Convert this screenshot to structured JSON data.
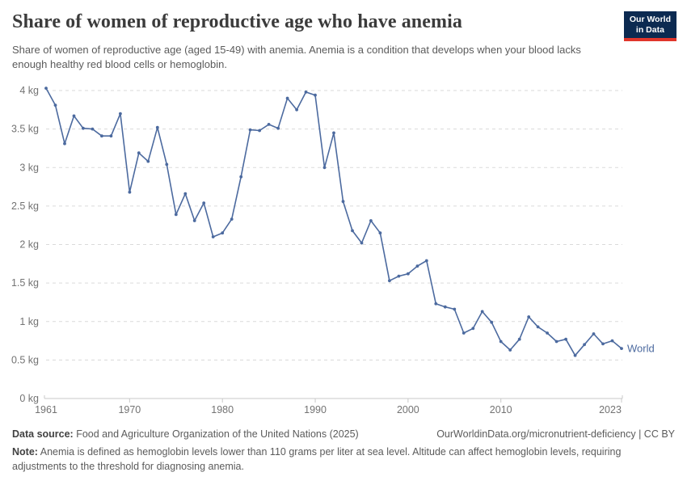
{
  "header": {
    "title": "Share of women of reproductive age who have anemia",
    "subtitle": "Share of women of reproductive age (aged 15-49) with anemia. Anemia is a condition that develops when your blood lacks enough healthy red blood cells or hemoglobin.",
    "logo": {
      "line1": "Our World",
      "line2": "in Data",
      "bg_color": "#0c2a51",
      "stripe_color": "#e0352b"
    }
  },
  "chart_data": {
    "type": "line",
    "title": "Share of women of reproductive age who have anemia",
    "xlabel": "",
    "ylabel": "",
    "xlim": [
      1961,
      2023
    ],
    "ylim": [
      0,
      4
    ],
    "grid": "dashed horizontal",
    "legend_position": "end-of-line label",
    "x_ticks": [
      1961,
      1970,
      1980,
      1990,
      2000,
      2010,
      2023
    ],
    "y_ticks": [
      {
        "value": 0,
        "label": "0 kg"
      },
      {
        "value": 0.5,
        "label": "0.5 kg"
      },
      {
        "value": 1,
        "label": "1 kg"
      },
      {
        "value": 1.5,
        "label": "1.5 kg"
      },
      {
        "value": 2,
        "label": "2 kg"
      },
      {
        "value": 2.5,
        "label": "2.5 kg"
      },
      {
        "value": 3,
        "label": "3 kg"
      },
      {
        "value": 3.5,
        "label": "3.5 kg"
      },
      {
        "value": 4,
        "label": "4 kg"
      }
    ],
    "series": [
      {
        "name": "World",
        "color": "#4c6a9f",
        "x": [
          1961,
          1962,
          1963,
          1964,
          1965,
          1966,
          1967,
          1968,
          1969,
          1970,
          1971,
          1972,
          1973,
          1974,
          1975,
          1976,
          1977,
          1978,
          1979,
          1980,
          1981,
          1982,
          1983,
          1984,
          1985,
          1986,
          1987,
          1988,
          1989,
          1990,
          1991,
          1992,
          1993,
          1994,
          1995,
          1996,
          1997,
          1998,
          1999,
          2000,
          2001,
          2002,
          2003,
          2004,
          2005,
          2006,
          2007,
          2008,
          2009,
          2010,
          2011,
          2012,
          2013,
          2014,
          2015,
          2016,
          2017,
          2018,
          2019,
          2020,
          2021,
          2022,
          2023
        ],
        "values": [
          4.03,
          3.81,
          3.31,
          3.67,
          3.51,
          3.5,
          3.41,
          3.41,
          3.7,
          2.68,
          3.19,
          3.08,
          3.52,
          3.04,
          2.39,
          2.66,
          2.31,
          2.54,
          2.1,
          2.15,
          2.33,
          2.88,
          3.49,
          3.48,
          3.56,
          3.51,
          3.9,
          3.75,
          3.98,
          3.94,
          3.0,
          3.45,
          2.56,
          2.18,
          2.02,
          2.31,
          2.15,
          1.53,
          1.59,
          1.62,
          1.72,
          1.79,
          1.23,
          1.19,
          1.16,
          0.85,
          0.91,
          1.13,
          0.99,
          0.74,
          0.63,
          0.77,
          1.06,
          0.93,
          0.85,
          0.74,
          0.77,
          0.56,
          0.7,
          0.84,
          0.71,
          0.75,
          0.65
        ]
      }
    ]
  },
  "footer": {
    "datasource_label": "Data source:",
    "datasource_text": " Food and Agriculture Organization of the United Nations (2025)",
    "attribution": "OurWorldinData.org/micronutrient-deficiency | CC BY",
    "note_label": "Note:",
    "note_text": " Anemia is defined as hemoglobin levels lower than 110 grams per liter at sea level. Altitude can affect hemoglobin levels, requiring adjustments to the threshold for diagnosing anemia."
  }
}
